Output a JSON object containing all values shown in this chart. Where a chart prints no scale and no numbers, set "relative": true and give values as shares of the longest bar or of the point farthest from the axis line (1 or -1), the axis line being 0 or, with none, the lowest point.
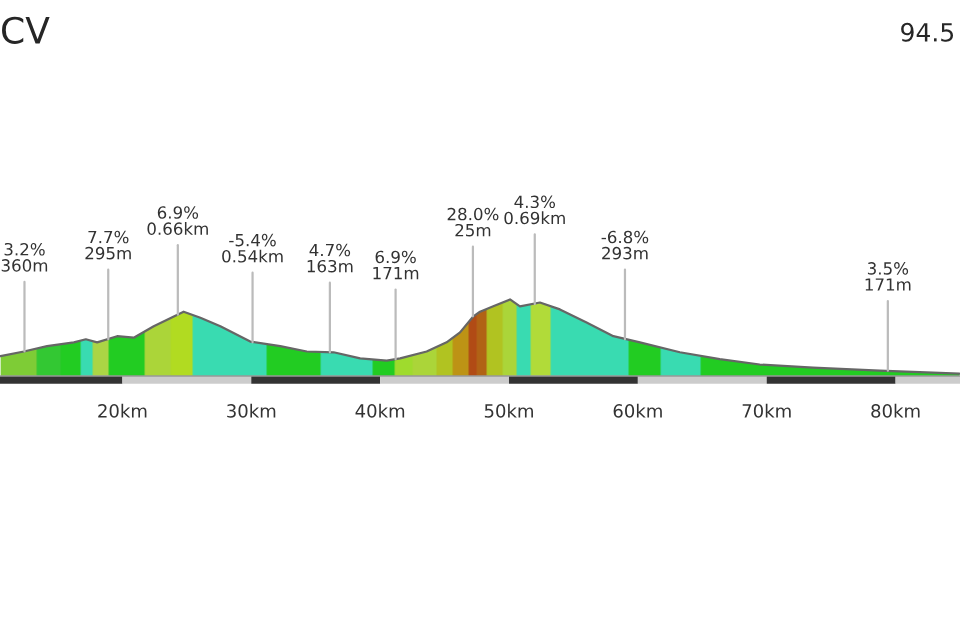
{
  "chart_data": {
    "type": "area",
    "title": "CV",
    "relative": true,
    "color": "#22cc22",
    "annotations": [
      "94.5",
      {
        "text": "3.2%\n360m",
        "x": 12.4,
        "y": 0.32
      },
      {
        "text": "7.7%\n295m",
        "x": 18.9,
        "y": 0.48
      },
      {
        "text": "6.9%\n0.66km",
        "x": 24.3,
        "y": 0.8
      },
      {
        "text": "-5.4%\n0.54km",
        "x": 30.1,
        "y": 0.44
      },
      {
        "text": "4.7%\n163m",
        "x": 36.1,
        "y": 0.31
      },
      {
        "text": "6.9%\n171m",
        "x": 41.2,
        "y": 0.22
      },
      {
        "text": "28.0%\n25m",
        "x": 47.2,
        "y": 0.78
      },
      {
        "text": "4.3%\n0.69km",
        "x": 52.0,
        "y": 0.94
      },
      {
        "text": "-6.8%\n293m",
        "x": 59.0,
        "y": 0.48
      },
      {
        "text": "3.5%\n171m",
        "x": 79.4,
        "y": 0.07
      }
    ],
    "x": [
      10.54,
      12.35,
      14.15,
      16.23,
      17.16,
      18.04,
      19.59,
      20.88,
      22.43,
      24.75,
      26.05,
      27.6,
      29.92,
      32.25,
      34.31,
      36.39,
      38.45,
      40.51,
      41.55,
      43.61,
      45.16,
      46.2,
      47.24,
      47.75,
      48.78,
      50.08,
      50.85,
      52.4,
      53.95,
      56.02,
      58.1,
      60.16,
      63.26,
      66.36,
      69.46,
      73.6,
      78.76,
      84.96
    ],
    "values": [
      0.26,
      0.32,
      0.39,
      0.44,
      0.48,
      0.44,
      0.52,
      0.5,
      0.65,
      0.84,
      0.76,
      0.65,
      0.45,
      0.39,
      0.32,
      0.31,
      0.23,
      0.2,
      0.23,
      0.32,
      0.44,
      0.57,
      0.78,
      0.84,
      0.91,
      1.0,
      0.91,
      0.96,
      0.87,
      0.7,
      0.52,
      0.44,
      0.31,
      0.22,
      0.15,
      0.11,
      0.07,
      0.03
    ],
    "colors": [
      "#9ccc3c",
      "#9ccc3c",
      "#39c739",
      "#22cc22",
      "#40e0e0",
      "#d8d850",
      "#22cc22",
      "#22cc22",
      "#d8d840",
      "#e0e020",
      "#40e0e0",
      "#40e0e0",
      "#40e0e0",
      "#22cc22",
      "#22cc22",
      "#40e0e0",
      "#40e0e0",
      "#22cc22",
      "#c8e030",
      "#d8d840",
      "#e0c020",
      "#f08010",
      "#e02010",
      "#e04010",
      "#e0c020",
      "#d8d840",
      "#40e0e0",
      "#e0e040",
      "#40e0e0",
      "#40e0e0",
      "#40e0e0",
      "#22cc22",
      "#40e0e0",
      "#22cc22",
      "#22cc22",
      "#22cc22",
      "#22cc22",
      "#22cc22"
    ],
    "xlim": [
      10.5,
      85
    ],
    "xticks": [
      {
        "value": 20,
        "label": "20km"
      },
      {
        "value": 30,
        "label": "30km"
      },
      {
        "value": 40,
        "label": "40km"
      },
      {
        "value": 50,
        "label": "50km"
      },
      {
        "value": 60,
        "label": "60km"
      },
      {
        "value": 70,
        "label": "70km"
      },
      {
        "value": 80,
        "label": "80km"
      }
    ]
  }
}
